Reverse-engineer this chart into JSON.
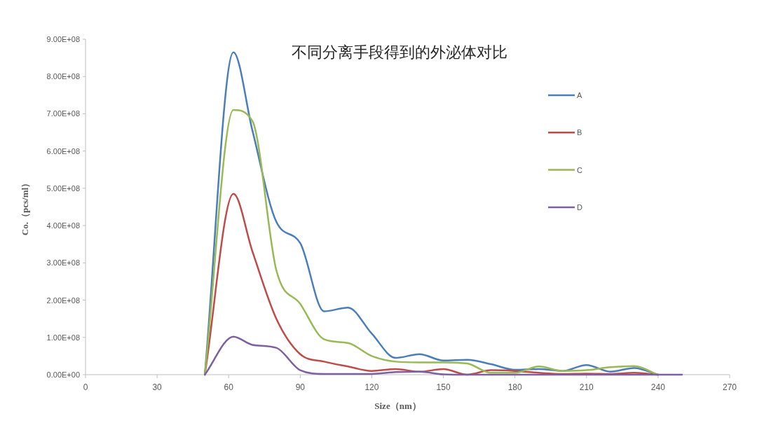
{
  "chart_data": {
    "type": "line",
    "title": "不同分离手段得到的外泌体对比",
    "xlabel": "Size（nm）",
    "ylabel": "Co.（pcs/ml）",
    "x": [
      50,
      62,
      70,
      80,
      90,
      100,
      110,
      120,
      130,
      140,
      150,
      160,
      170,
      180,
      190,
      200,
      210,
      220,
      230,
      240
    ],
    "series": [
      {
        "name": "A",
        "color": "#4a7ebb",
        "values": [
          0,
          865000000,
          654000000,
          410000000,
          353000000,
          170000000,
          180000000,
          110000000,
          45000000,
          55000000,
          38000000,
          40000000,
          28000000,
          13000000,
          15000000,
          10000000,
          26000000,
          8000000,
          18000000,
          0
        ]
      },
      {
        "name": "B",
        "color": "#be4b48",
        "values": [
          0,
          485000000,
          330000000,
          150000000,
          55000000,
          35000000,
          22000000,
          10000000,
          15000000,
          8000000,
          15000000,
          0,
          12000000,
          10000000,
          5000000,
          2000000,
          3000000,
          2000000,
          5000000,
          0
        ]
      },
      {
        "name": "C",
        "color": "#98b954",
        "values": [
          0,
          710000000,
          680000000,
          280000000,
          190000000,
          95000000,
          85000000,
          50000000,
          35000000,
          33000000,
          33000000,
          30000000,
          5000000,
          5000000,
          22000000,
          10000000,
          12000000,
          20000000,
          23000000,
          0
        ]
      },
      {
        "name": "D",
        "color": "#7d60a0",
        "x": [
          50,
          62,
          70,
          80,
          90,
          100,
          110,
          120,
          130,
          140,
          150,
          160,
          200,
          250
        ],
        "values": [
          0,
          102000000,
          80000000,
          72000000,
          12000000,
          2000000,
          2000000,
          2000000,
          7000000,
          8000000,
          1000000,
          0,
          0,
          0
        ]
      }
    ],
    "xlim": [
      0,
      270
    ],
    "xticks": [
      0,
      30,
      60,
      90,
      120,
      150,
      180,
      210,
      240,
      270
    ],
    "ylim": [
      0,
      900000000
    ],
    "yticks": [
      {
        "value": 0,
        "label": "0.00E+00"
      },
      {
        "value": 100000000,
        "label": "1.00E+08"
      },
      {
        "value": 200000000,
        "label": "2.00E+08"
      },
      {
        "value": 300000000,
        "label": "3.00E+08"
      },
      {
        "value": 400000000,
        "label": "4.00E+08"
      },
      {
        "value": 500000000,
        "label": "5.00E+08"
      },
      {
        "value": 600000000,
        "label": "6.00E+08"
      },
      {
        "value": 700000000,
        "label": "7.00E+08"
      },
      {
        "value": 800000000,
        "label": "8.00E+08"
      },
      {
        "value": 900000000,
        "label": "9.00E+08"
      }
    ],
    "grid": false,
    "legend": "right",
    "marker": "none",
    "line_style": "solid"
  }
}
